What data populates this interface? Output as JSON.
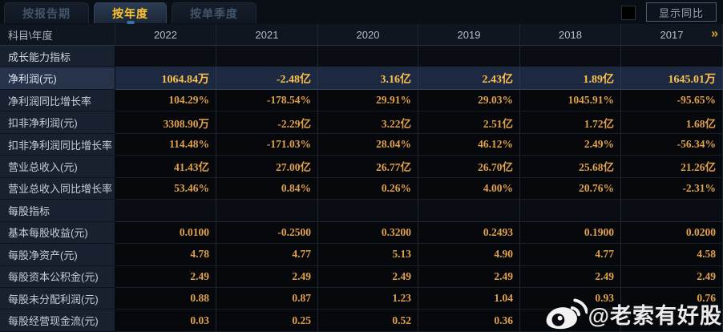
{
  "tabs": [
    {
      "label": "按报告期",
      "active": false
    },
    {
      "label": "按年度",
      "active": true
    },
    {
      "label": "按单季度",
      "active": false
    }
  ],
  "show_yoy": {
    "label": "显示同比",
    "checked": false
  },
  "table": {
    "corner_header": "科目\\年度",
    "year_columns": [
      "2022",
      "2021",
      "2020",
      "2019",
      "2018",
      "2017"
    ],
    "more_years_icon": "»",
    "rows": [
      {
        "type": "section",
        "label": "成长能力指标"
      },
      {
        "type": "data",
        "label": "净利润(元)",
        "highlight": true,
        "values": [
          "1064.84万",
          "-2.48亿",
          "3.16亿",
          "2.43亿",
          "1.89亿",
          "1645.01万"
        ]
      },
      {
        "type": "data",
        "label": "净利润同比增长率",
        "values": [
          "104.29%",
          "-178.54%",
          "29.91%",
          "29.03%",
          "1045.91%",
          "-95.65%"
        ]
      },
      {
        "type": "data",
        "label": "扣非净利润(元)",
        "values": [
          "3308.90万",
          "-2.29亿",
          "3.22亿",
          "2.51亿",
          "1.72亿",
          "1.68亿"
        ]
      },
      {
        "type": "data",
        "label": "扣非净利润同比增长率",
        "values": [
          "114.48%",
          "-171.03%",
          "28.04%",
          "46.12%",
          "2.49%",
          "-56.34%"
        ]
      },
      {
        "type": "data",
        "label": "营业总收入(元)",
        "values": [
          "41.43亿",
          "27.00亿",
          "26.77亿",
          "26.70亿",
          "25.68亿",
          "21.26亿"
        ]
      },
      {
        "type": "data",
        "label": "营业总收入同比增长率",
        "values": [
          "53.46%",
          "0.84%",
          "0.26%",
          "4.00%",
          "20.76%",
          "-2.31%"
        ]
      },
      {
        "type": "section",
        "label": "每股指标"
      },
      {
        "type": "data",
        "label": "基本每股收益(元)",
        "values": [
          "0.0100",
          "-0.2500",
          "0.3200",
          "0.2493",
          "0.1900",
          "0.0200"
        ]
      },
      {
        "type": "data",
        "label": "每股净资产(元)",
        "values": [
          "4.78",
          "4.77",
          "5.13",
          "4.90",
          "4.77",
          "4.58"
        ]
      },
      {
        "type": "data",
        "label": "每股资本公积金(元)",
        "values": [
          "2.49",
          "2.49",
          "2.49",
          "2.49",
          "2.49",
          "2.49"
        ]
      },
      {
        "type": "data",
        "label": "每股未分配利润(元)",
        "values": [
          "0.88",
          "0.87",
          "1.23",
          "1.04",
          "0.93",
          "0.76"
        ]
      },
      {
        "type": "data",
        "label": "每股经营现金流(元)",
        "values": [
          "0.03",
          "0.25",
          "0.52",
          "0.36",
          "",
          ""
        ]
      }
    ]
  },
  "watermark": {
    "handle": "@老索有好股",
    "icon": "weibo-logo"
  },
  "colors": {
    "accent_gold": "#ffc42e",
    "value_orange": "#dfa14e",
    "highlight_value": "#ffc14d",
    "highlight_row_bg": "#1c2940",
    "label_column_bg": "#172130",
    "page_bg": "#06090e"
  }
}
